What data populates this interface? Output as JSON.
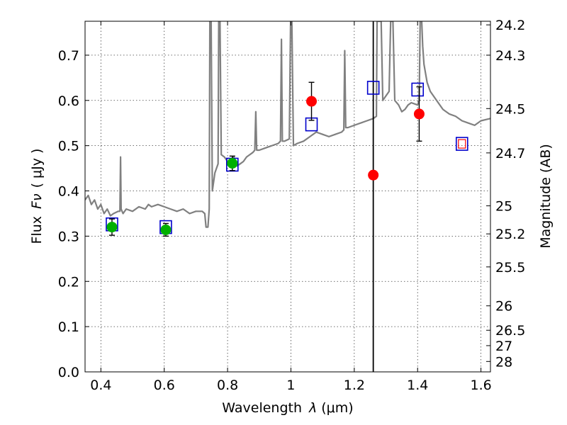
{
  "chart_data": {
    "type": "scatter",
    "title": "",
    "xlabel": "Wavelength",
    "xlabel_symbol": "λ",
    "xlabel_unit": "(μm)",
    "ylabel": "Flux",
    "ylabel_symbol": "Fν",
    "ylabel_unit": "( μJy )",
    "y2label": "Magnitude (AB)",
    "xlim": [
      0.35,
      1.63
    ],
    "ylim": [
      0.0,
      0.775
    ],
    "grid": true,
    "x_ticks": [
      0.4,
      0.6,
      0.8,
      1.0,
      1.2,
      1.4,
      1.6
    ],
    "x_tick_labels": [
      "0.4",
      "0.6",
      "0.8",
      "1",
      "1.2",
      "1.4",
      "1.6"
    ],
    "y_ticks": [
      0.0,
      0.1,
      0.2,
      0.3,
      0.4,
      0.5,
      0.6,
      0.7
    ],
    "y_tick_labels": [
      "0.0",
      "0.1",
      "0.2",
      "0.3",
      "0.4",
      "0.5",
      "0.6",
      "0.7"
    ],
    "y2_ticks": [
      {
        "label": "24.2",
        "flux": 0.767
      },
      {
        "label": "24.3",
        "flux": 0.7
      },
      {
        "label": "24.5",
        "flux": 0.582
      },
      {
        "label": "24.7",
        "flux": 0.484
      },
      {
        "label": "25",
        "flux": 0.367
      },
      {
        "label": "25.2",
        "flux": 0.305
      },
      {
        "label": "25.5",
        "flux": 0.232
      },
      {
        "label": "26",
        "flux": 0.146
      },
      {
        "label": "26.5",
        "flux": 0.092
      },
      {
        "label": "27",
        "flux": 0.058
      },
      {
        "label": "28",
        "flux": 0.023
      }
    ],
    "vertical_line_x": 1.26,
    "model_spectrum": {
      "color": "#808080",
      "points": [
        [
          0.35,
          0.38
        ],
        [
          0.36,
          0.39
        ],
        [
          0.37,
          0.37
        ],
        [
          0.38,
          0.38
        ],
        [
          0.39,
          0.36
        ],
        [
          0.4,
          0.37
        ],
        [
          0.41,
          0.35
        ],
        [
          0.42,
          0.36
        ],
        [
          0.43,
          0.345
        ],
        [
          0.44,
          0.35
        ],
        [
          0.455,
          0.355
        ],
        [
          0.46,
          0.355
        ],
        [
          0.462,
          0.475
        ],
        [
          0.464,
          0.36
        ],
        [
          0.47,
          0.35
        ],
        [
          0.48,
          0.36
        ],
        [
          0.5,
          0.355
        ],
        [
          0.52,
          0.365
        ],
        [
          0.54,
          0.36
        ],
        [
          0.55,
          0.37
        ],
        [
          0.56,
          0.365
        ],
        [
          0.58,
          0.37
        ],
        [
          0.6,
          0.365
        ],
        [
          0.62,
          0.36
        ],
        [
          0.64,
          0.355
        ],
        [
          0.66,
          0.36
        ],
        [
          0.68,
          0.35
        ],
        [
          0.7,
          0.355
        ],
        [
          0.72,
          0.355
        ],
        [
          0.728,
          0.35
        ],
        [
          0.732,
          0.32
        ],
        [
          0.738,
          0.32
        ],
        [
          0.742,
          0.36
        ],
        [
          0.744,
          0.775
        ],
        [
          0.748,
          0.775
        ],
        [
          0.752,
          0.4
        ],
        [
          0.76,
          0.44
        ],
        [
          0.77,
          0.46
        ],
        [
          0.772,
          0.775
        ],
        [
          0.776,
          0.775
        ],
        [
          0.78,
          0.48
        ],
        [
          0.79,
          0.475
        ],
        [
          0.8,
          0.465
        ],
        [
          0.81,
          0.47
        ],
        [
          0.82,
          0.475
        ],
        [
          0.825,
          0.46
        ],
        [
          0.83,
          0.455
        ],
        [
          0.84,
          0.46
        ],
        [
          0.85,
          0.465
        ],
        [
          0.86,
          0.475
        ],
        [
          0.87,
          0.48
        ],
        [
          0.88,
          0.485
        ],
        [
          0.886,
          0.49
        ],
        [
          0.889,
          0.575
        ],
        [
          0.892,
          0.49
        ],
        [
          0.9,
          0.49
        ],
        [
          0.92,
          0.495
        ],
        [
          0.94,
          0.5
        ],
        [
          0.96,
          0.505
        ],
        [
          0.967,
          0.51
        ],
        [
          0.97,
          0.735
        ],
        [
          0.973,
          0.51
        ],
        [
          0.98,
          0.51
        ],
        [
          0.995,
          0.515
        ],
        [
          0.999,
          0.775
        ],
        [
          1.003,
          0.775
        ],
        [
          1.008,
          0.5
        ],
        [
          1.02,
          0.505
        ],
        [
          1.04,
          0.51
        ],
        [
          1.06,
          0.52
        ],
        [
          1.08,
          0.53
        ],
        [
          1.1,
          0.525
        ],
        [
          1.12,
          0.52
        ],
        [
          1.14,
          0.525
        ],
        [
          1.16,
          0.53
        ],
        [
          1.167,
          0.535
        ],
        [
          1.17,
          0.71
        ],
        [
          1.173,
          0.54
        ],
        [
          1.18,
          0.54
        ],
        [
          1.2,
          0.545
        ],
        [
          1.22,
          0.55
        ],
        [
          1.24,
          0.555
        ],
        [
          1.26,
          0.56
        ],
        [
          1.27,
          0.565
        ],
        [
          1.272,
          0.775
        ],
        [
          1.285,
          0.775
        ],
        [
          1.29,
          0.6
        ],
        [
          1.3,
          0.61
        ],
        [
          1.31,
          0.62
        ],
        [
          1.315,
          0.775
        ],
        [
          1.322,
          0.775
        ],
        [
          1.328,
          0.6
        ],
        [
          1.34,
          0.59
        ],
        [
          1.35,
          0.575
        ],
        [
          1.36,
          0.58
        ],
        [
          1.37,
          0.59
        ],
        [
          1.38,
          0.595
        ],
        [
          1.4,
          0.59
        ],
        [
          1.405,
          0.6
        ],
        [
          1.408,
          0.775
        ],
        [
          1.413,
          0.775
        ],
        [
          1.416,
          0.72
        ],
        [
          1.42,
          0.68
        ],
        [
          1.43,
          0.64
        ],
        [
          1.44,
          0.62
        ],
        [
          1.46,
          0.6
        ],
        [
          1.48,
          0.58
        ],
        [
          1.5,
          0.57
        ],
        [
          1.52,
          0.565
        ],
        [
          1.54,
          0.555
        ],
        [
          1.56,
          0.55
        ],
        [
          1.58,
          0.545
        ],
        [
          1.6,
          0.555
        ],
        [
          1.63,
          0.56
        ]
      ]
    },
    "model_photometry": {
      "marker": "open-square",
      "color": "#0000cc",
      "points": [
        {
          "x": 0.435,
          "y": 0.326
        },
        {
          "x": 0.605,
          "y": 0.32
        },
        {
          "x": 0.815,
          "y": 0.458
        },
        {
          "x": 1.065,
          "y": 0.547
        },
        {
          "x": 1.26,
          "y": 0.628
        },
        {
          "x": 1.4,
          "y": 0.624
        },
        {
          "x": 1.54,
          "y": 0.504
        }
      ]
    },
    "optical_detections": {
      "marker": "filled-circle",
      "color": "#00b000",
      "points": [
        {
          "x": 0.435,
          "y": 0.32,
          "yerr": 0.018
        },
        {
          "x": 0.605,
          "y": 0.314,
          "yerr": 0.014
        },
        {
          "x": 0.815,
          "y": 0.461,
          "yerr": 0.016
        }
      ]
    },
    "nir_detections": {
      "marker": "filled-circle",
      "color": "#ff0000",
      "points": [
        {
          "x": 1.065,
          "y": 0.598,
          "yerr": 0.042
        },
        {
          "x": 1.26,
          "y": 0.435,
          "yerr": 0.0
        },
        {
          "x": 1.405,
          "y": 0.57,
          "yerr": 0.06
        }
      ]
    },
    "upper_limit_marker": {
      "marker": "small-open-square",
      "color": "#ff0000",
      "x": 1.54,
      "y": 0.504
    }
  }
}
